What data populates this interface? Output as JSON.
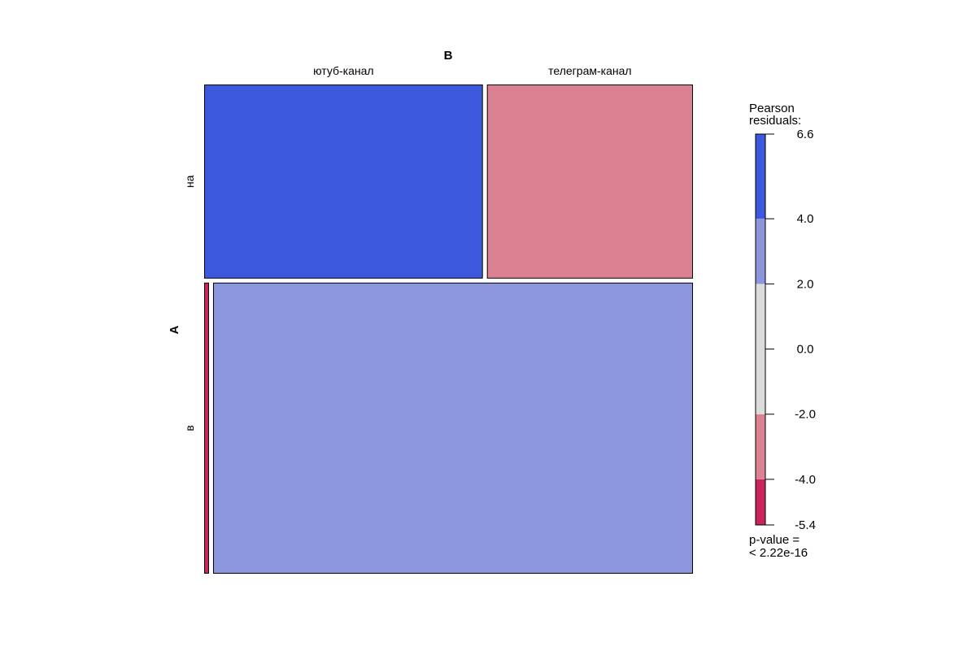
{
  "chart_data": {
    "type": "mosaic",
    "column_variable": "B",
    "row_variable": "A",
    "column_levels": [
      "ютуб-канал",
      "телеграм-канал"
    ],
    "row_levels": [
      "на",
      "в"
    ],
    "row_proportions": [
      0.4,
      0.6
    ],
    "cell_proportions": [
      [
        0.575,
        0.425
      ],
      [
        0.01,
        0.99
      ]
    ],
    "residual_band_index": [
      [
        4,
        1
      ],
      [
        0,
        3
      ]
    ],
    "legend": {
      "title_line1": "Pearson",
      "title_line2": "residuals:",
      "bands": [
        {
          "from": -5.4,
          "to": -4.0,
          "color": "#c9245c"
        },
        {
          "from": -4.0,
          "to": -2.0,
          "color": "#dc8192"
        },
        {
          "from": -2.0,
          "to": 2.0,
          "color": "#dcdcdc"
        },
        {
          "from": 2.0,
          "to": 4.0,
          "color": "#8c96dc"
        },
        {
          "from": 4.0,
          "to": 6.6,
          "color": "#3c58dc"
        }
      ],
      "ticks": [
        "6.6",
        "4.0",
        "2.0",
        "0.0",
        "-2.0",
        "-4.0",
        "-5.4"
      ],
      "tick_values": [
        6.6,
        4.0,
        2.0,
        0.0,
        -2.0,
        -4.0,
        -5.4
      ],
      "min": -5.4,
      "max": 6.6
    },
    "pvalue_line1": "p-value =",
    "pvalue_line2": "< 2.22e-16"
  }
}
